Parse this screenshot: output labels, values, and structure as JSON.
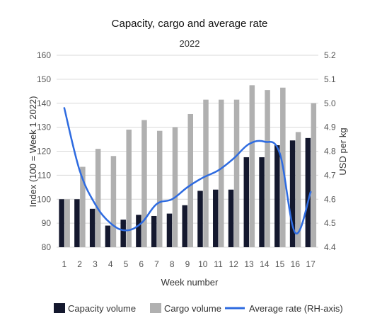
{
  "chart_data": {
    "type": "bar",
    "title": "Capacity, cargo and average rate",
    "subtitle": "2022",
    "xlabel": "Week number",
    "ylabel_left": "Index (100 = Week 1 2022)",
    "ylabel_right": "USD per kg",
    "ylim_left": [
      80,
      160
    ],
    "ylim_right": [
      4.4,
      5.2
    ],
    "yticks_left": [
      "80",
      "90",
      "100",
      "110",
      "120",
      "130",
      "140",
      "150",
      "160"
    ],
    "yticks_right": [
      "4.4",
      "4.5",
      "4.6",
      "4.7",
      "4.8",
      "4.9",
      "5.0",
      "5.1",
      "5.2"
    ],
    "categories": [
      "1",
      "2",
      "3",
      "4",
      "5",
      "6",
      "7",
      "8",
      "9",
      "10",
      "11",
      "12",
      "13",
      "14",
      "15",
      "16",
      "17"
    ],
    "grid": true,
    "legend_position": "bottom",
    "series": [
      {
        "name": "Capacity volume",
        "kind": "bar",
        "axis": "left",
        "color": "#14182e",
        "values": [
          100,
          100,
          96,
          89,
          91.5,
          93.5,
          93,
          94,
          97.5,
          103.5,
          104,
          104,
          117.5,
          117.5,
          122.5,
          124.5,
          125.5
        ]
      },
      {
        "name": "Cargo volume",
        "kind": "bar",
        "axis": "left",
        "color": "#b0b0b0",
        "values": [
          100,
          113.5,
          121,
          118,
          129,
          133,
          128.5,
          130,
          135.5,
          141.5,
          141.5,
          141.5,
          147.5,
          145.5,
          146.5,
          128,
          140
        ]
      },
      {
        "name": "Average rate (RH-axis)",
        "kind": "line",
        "axis": "right",
        "color": "#2e6be0",
        "values": [
          4.98,
          4.72,
          4.58,
          4.5,
          4.47,
          4.5,
          4.58,
          4.6,
          4.65,
          4.69,
          4.72,
          4.77,
          4.83,
          4.84,
          4.79,
          4.46,
          4.63
        ]
      }
    ]
  }
}
